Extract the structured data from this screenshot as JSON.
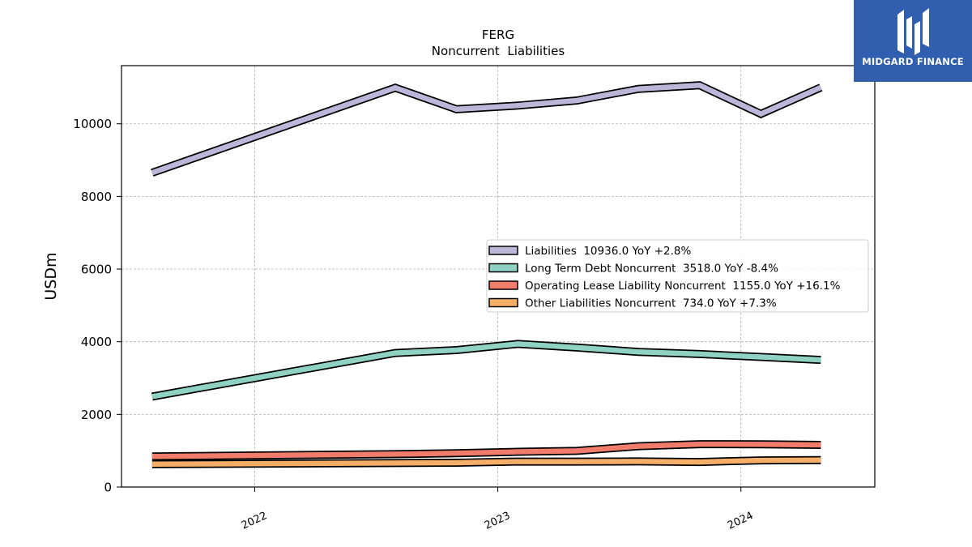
{
  "brand": {
    "name": "MIDGARD FINANCE",
    "background": "#2f5fae"
  },
  "chart_data": {
    "type": "line",
    "title": "FERG",
    "subtitle": "Noncurrent  Liabilities",
    "ylabel": "USDm",
    "xlabel": "",
    "ylim": [
      0,
      11600
    ],
    "yticks": [
      0,
      2000,
      4000,
      6000,
      8000,
      10000
    ],
    "xlim": [
      "2021-06-15",
      "2024-07-20"
    ],
    "xticks": [
      {
        "date": "2022-01-01",
        "label": "2022"
      },
      {
        "date": "2023-01-01",
        "label": "2023"
      },
      {
        "date": "2024-01-01",
        "label": "2024"
      }
    ],
    "grid": true,
    "legend_position": "center-right",
    "x": [
      "2021-07-31",
      "2022-07-31",
      "2022-10-31",
      "2023-01-31",
      "2023-04-30",
      "2023-07-31",
      "2023-10-31",
      "2024-01-31",
      "2024-04-30"
    ],
    "series": [
      {
        "name": "Liabilities",
        "legend": "Liabilities  10936.0 YoY +2.8%",
        "color": "#bcb6d9",
        "values": [
          8650,
          10990,
          10400,
          10500,
          10640,
          10960,
          11060,
          10270,
          11000
        ]
      },
      {
        "name": "Long Term Debt Noncurrent",
        "legend": "Long Term Debt Noncurrent  3518.0 YoY -8.4%",
        "color": "#8fd1c2",
        "values": [
          2490,
          3690,
          3770,
          3940,
          3840,
          3720,
          3660,
          3580,
          3500
        ]
      },
      {
        "name": "Operating Lease Liability Noncurrent",
        "legend": "Operating Lease Liability Noncurrent  1155.0 YoY +16.1%",
        "color": "#f27c6c",
        "values": [
          840,
          905,
          930,
          970,
          995,
          1125,
          1180,
          1175,
          1160
        ]
      },
      {
        "name": "Other Liabilities Noncurrent",
        "legend": "Other Liabilities Noncurrent  734.0 YoY +7.3%",
        "color": "#f5ae68",
        "values": [
          630,
          660,
          670,
          700,
          700,
          705,
          690,
          735,
          740
        ]
      }
    ]
  }
}
